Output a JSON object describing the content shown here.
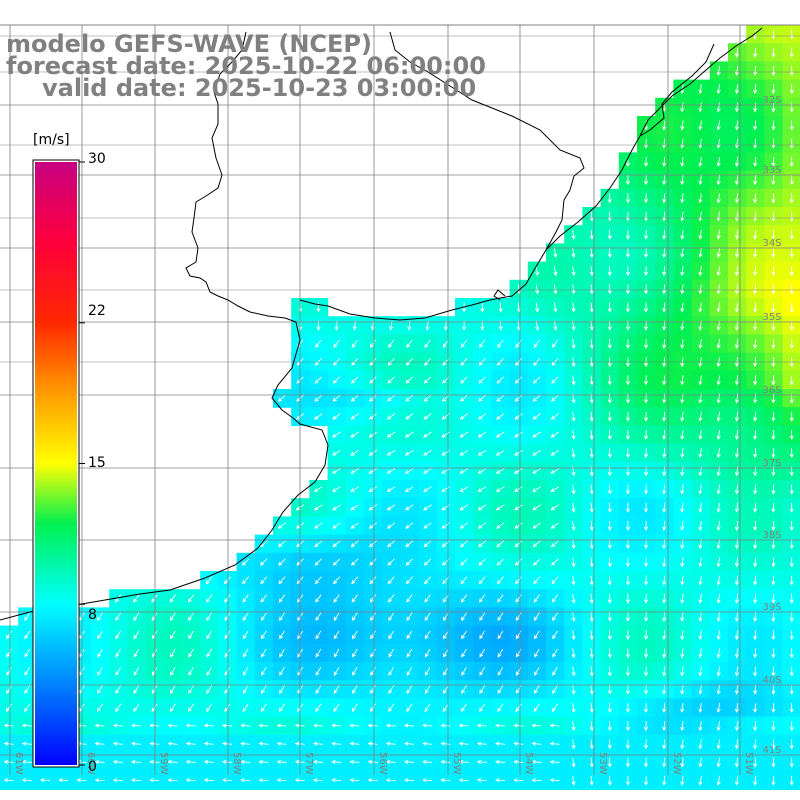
{
  "title": {
    "model": "modelo GEFS-WAVE (NCEP)",
    "forecast": "forecast date: 2025-10-22 06:00:00",
    "valid": "valid date: 2025-10-23 03:00:00"
  },
  "colorbar": {
    "unit": "[m/s]",
    "min": 0,
    "max": 30,
    "ticks": [
      "30",
      "22",
      "15",
      "8",
      "0"
    ],
    "tick_values": [
      30,
      22,
      15,
      8,
      0
    ]
  },
  "map": {
    "lat_labels": [
      "32S",
      "33S",
      "34S",
      "35S",
      "36S",
      "37S",
      "38S",
      "39S",
      "40S",
      "41S"
    ],
    "lon_labels": [
      "61W",
      "60W",
      "59W",
      "58W",
      "57W",
      "56W",
      "55W",
      "54W",
      "53W",
      "52W",
      "51W"
    ],
    "colors": {
      "land": "#ffffff",
      "coast": "#000000",
      "grid": "#808080",
      "arrow": "#ffffff"
    }
  }
}
